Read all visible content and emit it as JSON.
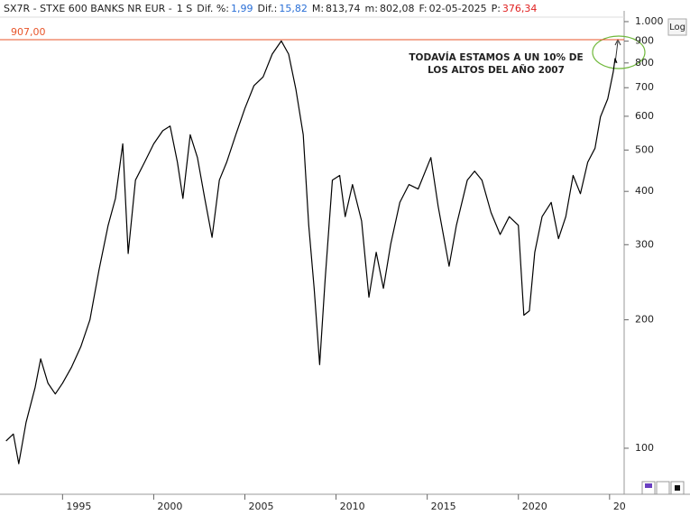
{
  "chart_data": {
    "type": "line",
    "header": {
      "ticker": "SX7R - STXE 600 BANKS NR EUR -",
      "period": "1 S",
      "items": [
        {
          "label": "Dif. %:",
          "value": "1,99",
          "color": "#2a6fd6"
        },
        {
          "label": "Dif.:",
          "value": "15,82",
          "color": "#2a6fd6"
        },
        {
          "label": "M:",
          "value": "813,74",
          "color": "#222222"
        },
        {
          "label": "m:",
          "value": "802,08",
          "color": "#222222"
        },
        {
          "label": "F:",
          "value": "02-05-2025",
          "color": "#222222"
        },
        {
          "label": "P:",
          "value": "376,34",
          "color": "#e02020"
        }
      ]
    },
    "log_button": "Log",
    "log_scale": true,
    "color": "#000000",
    "x": [
      1991.9,
      1992.3,
      1992.6,
      1993.0,
      1993.5,
      1993.8,
      1994.2,
      1994.6,
      1995.0,
      1995.5,
      1996.0,
      1996.5,
      1997.0,
      1997.5,
      1997.9,
      1998.3,
      1998.6,
      1999.0,
      1999.5,
      2000.0,
      2000.5,
      2000.9,
      2001.3,
      2001.6,
      2002.0,
      2002.4,
      2002.8,
      2003.2,
      2003.6,
      2004.0,
      2004.5,
      2005.0,
      2005.5,
      2006.0,
      2006.5,
      2007.0,
      2007.4,
      2007.8,
      2008.2,
      2008.5,
      2008.8,
      2009.1,
      2009.4,
      2009.8,
      2010.2,
      2010.5,
      2010.9,
      2011.4,
      2011.8,
      2012.2,
      2012.6,
      2013.0,
      2013.5,
      2014.0,
      2014.5,
      2015.2,
      2015.6,
      2016.2,
      2016.6,
      2017.2,
      2017.6,
      2018.0,
      2018.5,
      2019.0,
      2019.5,
      2020.0,
      2020.3,
      2020.6,
      2020.9,
      2021.3,
      2021.8,
      2022.2,
      2022.6,
      2023.0,
      2023.4,
      2023.8,
      2024.2,
      2024.5,
      2024.9,
      2025.2,
      2025.3,
      2025.4
    ],
    "values": [
      104,
      108,
      92,
      115,
      139,
      162,
      142,
      134,
      142,
      155,
      173,
      200,
      262,
      333,
      385,
      517,
      286,
      425,
      468,
      517,
      555,
      569,
      468,
      385,
      543,
      480,
      385,
      312,
      425,
      468,
      543,
      626,
      708,
      742,
      839,
      901,
      839,
      693,
      543,
      333,
      237,
      157,
      249,
      425,
      436,
      349,
      415,
      341,
      226,
      288,
      237,
      301,
      377,
      415,
      405,
      480,
      369,
      267,
      333,
      425,
      446,
      425,
      357,
      317,
      349,
      333,
      205,
      210,
      288,
      349,
      377,
      310,
      349,
      436,
      395,
      468,
      505,
      598,
      659,
      762,
      819,
      800
    ],
    "xlim": [
      1991.57,
      2025.8
    ],
    "xticks": [
      1995,
      2000,
      2005,
      2010,
      2015,
      2020,
      {
        "value": 2025,
        "label": "20"
      }
    ],
    "ylim": [
      78,
      1060
    ],
    "yticks": [
      100,
      200,
      300,
      400,
      500,
      600,
      700,
      800,
      900,
      {
        "value": 1000,
        "label": "1.000"
      }
    ],
    "ref_line": {
      "value": 907,
      "label": "907,00",
      "color": "#e8552a"
    },
    "annotation": [
      "TODAVÍA ESTAMOS A UN 10% DE",
      "LOS ALTOS DEL AÑO 2007"
    ]
  }
}
